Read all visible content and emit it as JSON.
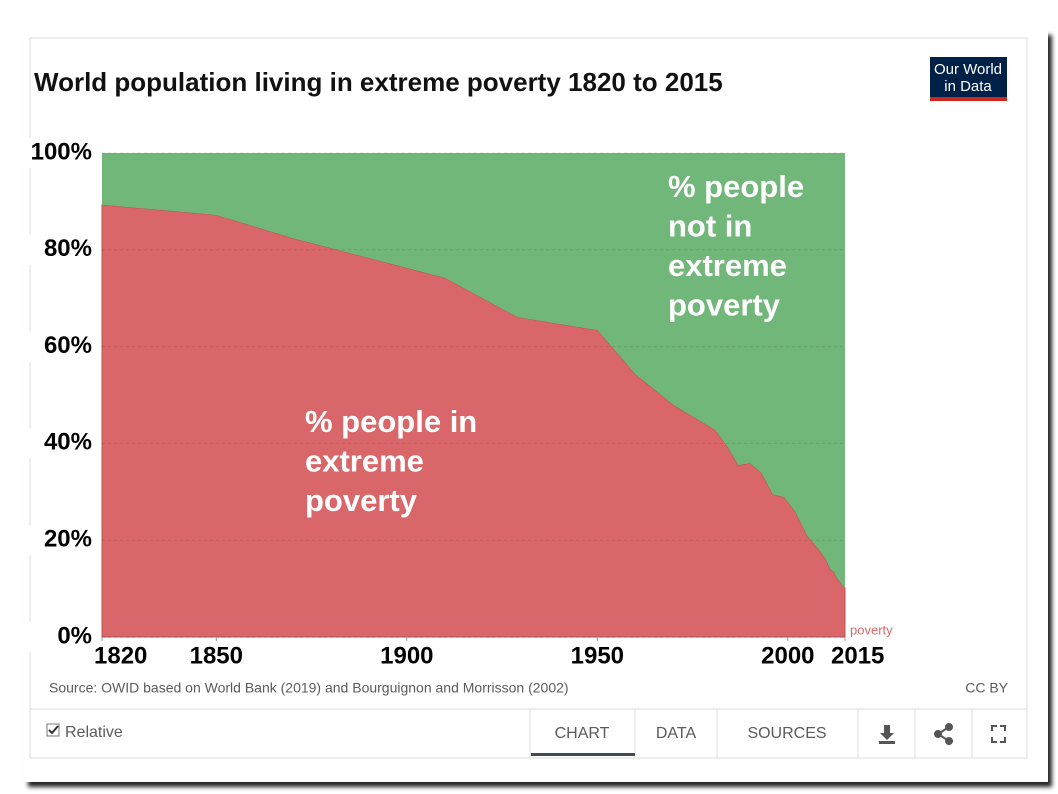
{
  "chart_data": {
    "type": "stacked_area",
    "title": "World population living in extreme poverty 1820 to 2015",
    "x": [
      1820,
      1850,
      1870,
      1890,
      1910,
      1929,
      1950,
      1960,
      1970,
      1980,
      1981,
      1984,
      1987,
      1990,
      1993,
      1996,
      1999,
      2002,
      2005,
      2008,
      2010,
      2011,
      2012,
      2013,
      2015
    ],
    "series": [
      {
        "color": "#d9676a",
        "values": [
          89.3,
          87.2,
          82.4,
          78.3,
          74.2,
          66.1,
          63.4,
          54.3,
          47.9,
          43.2,
          42.7,
          39.5,
          35.5,
          35.9,
          34.0,
          29.5,
          28.9,
          25.8,
          21.0,
          18.2,
          16.0,
          14.2,
          13.5,
          12.0,
          10.1
        ]
      },
      {
        "color": "#72b77a",
        "values": [
          10.7,
          12.8,
          17.6,
          21.7,
          25.8,
          33.9,
          36.6,
          45.7,
          52.1,
          56.8,
          57.3,
          60.5,
          64.5,
          64.1,
          66.0,
          70.5,
          71.1,
          74.2,
          79.0,
          81.8,
          84.0,
          85.8,
          86.5,
          88.0,
          89.9
        ]
      }
    ],
    "annotations": [
      {
        "lines": [
          "% people in",
          "extreme",
          "poverty"
        ]
      },
      {
        "lines": [
          "% people",
          "not in",
          "extreme",
          "poverty"
        ]
      }
    ],
    "legend_fragment": "poverty",
    "xlim": [
      1820,
      2015
    ],
    "xticks": [
      1820,
      1850,
      1900,
      1950,
      2000,
      2015
    ],
    "ylim": [
      0,
      100
    ],
    "yticks": [
      {
        "value": 0,
        "label": "0%"
      },
      {
        "value": 20,
        "label": "20%"
      },
      {
        "value": 40,
        "label": "40%"
      },
      {
        "value": 60,
        "label": "60%"
      },
      {
        "value": 80,
        "label": "80%"
      },
      {
        "value": 100,
        "label": "100%"
      }
    ]
  },
  "ui": {
    "logo": [
      "Our World",
      "in Data"
    ],
    "source": "Source: OWID based on World Bank (2019) and Bourguignon and Morrisson (2002)",
    "license": "CC BY",
    "checkbox": "Relative",
    "tabs": [
      "CHART",
      "DATA",
      "SOURCES"
    ]
  }
}
